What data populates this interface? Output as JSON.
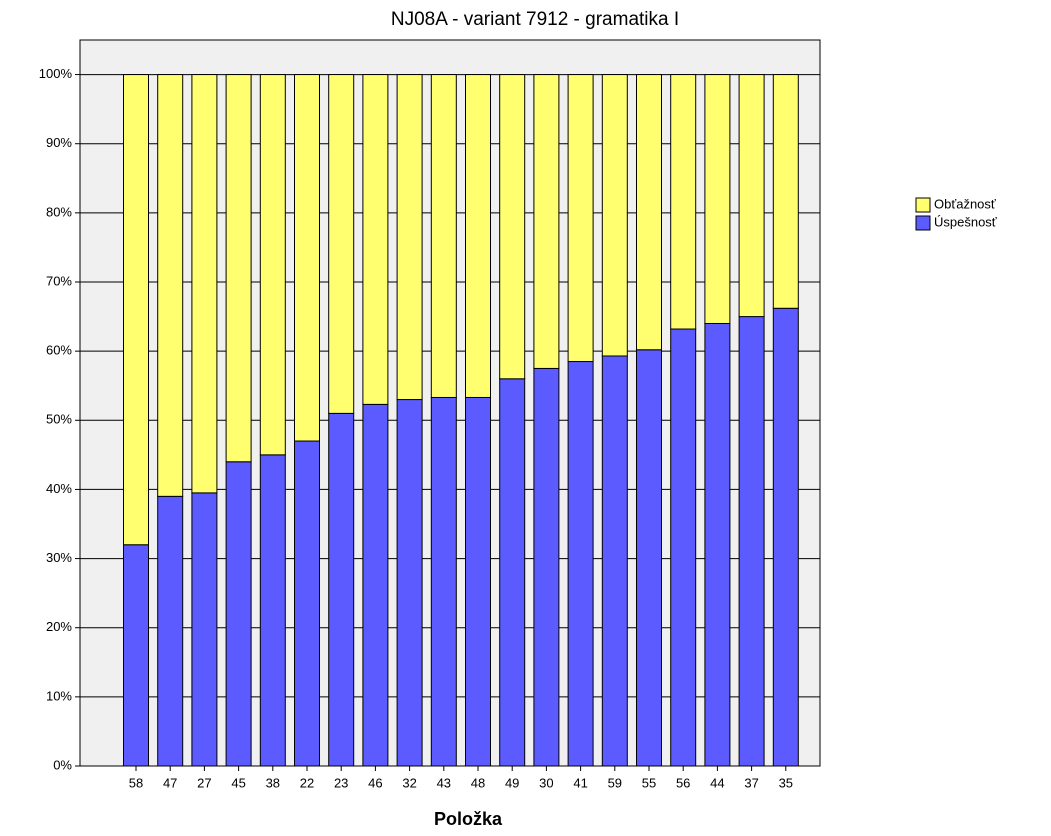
{
  "chart_data": {
    "type": "stacked_bar",
    "title": "NJ08A - variant 7912 - gramatika I",
    "x_label": "Položka",
    "categories": [
      "58",
      "47",
      "27",
      "45",
      "38",
      "22",
      "23",
      "46",
      "32",
      "43",
      "48",
      "49",
      "30",
      "41",
      "59",
      "55",
      "56",
      "44",
      "37",
      "35"
    ],
    "series": [
      {
        "name": "Úspešnosť",
        "color": "#5b5bff",
        "values": [
          32,
          39,
          39.5,
          44,
          45,
          47,
          51,
          52.3,
          53,
          53.3,
          53.3,
          56,
          57.5,
          58.5,
          59.3,
          60.2,
          63.2,
          64,
          65,
          66.2
        ]
      },
      {
        "name": "Obťažnosť",
        "color": "#ffff70",
        "values": [
          68,
          61,
          60.5,
          56,
          55,
          53,
          49,
          47.7,
          47,
          46.7,
          46.7,
          44,
          42.5,
          41.5,
          40.7,
          39.8,
          36.8,
          36,
          35,
          33.8
        ]
      }
    ],
    "ylim": [
      0,
      105
    ],
    "yticks": [
      {
        "value": 0,
        "label": "0%"
      },
      {
        "value": 10,
        "label": "10%"
      },
      {
        "value": 20,
        "label": "20%"
      },
      {
        "value": 30,
        "label": "30%"
      },
      {
        "value": 40,
        "label": "40%"
      },
      {
        "value": 50,
        "label": "50%"
      },
      {
        "value": 60,
        "label": "60%"
      },
      {
        "value": 70,
        "label": "70%"
      },
      {
        "value": 80,
        "label": "80%"
      },
      {
        "value": 90,
        "label": "90%"
      },
      {
        "value": 100,
        "label": "100%"
      }
    ],
    "grid": true,
    "legend": "right"
  }
}
